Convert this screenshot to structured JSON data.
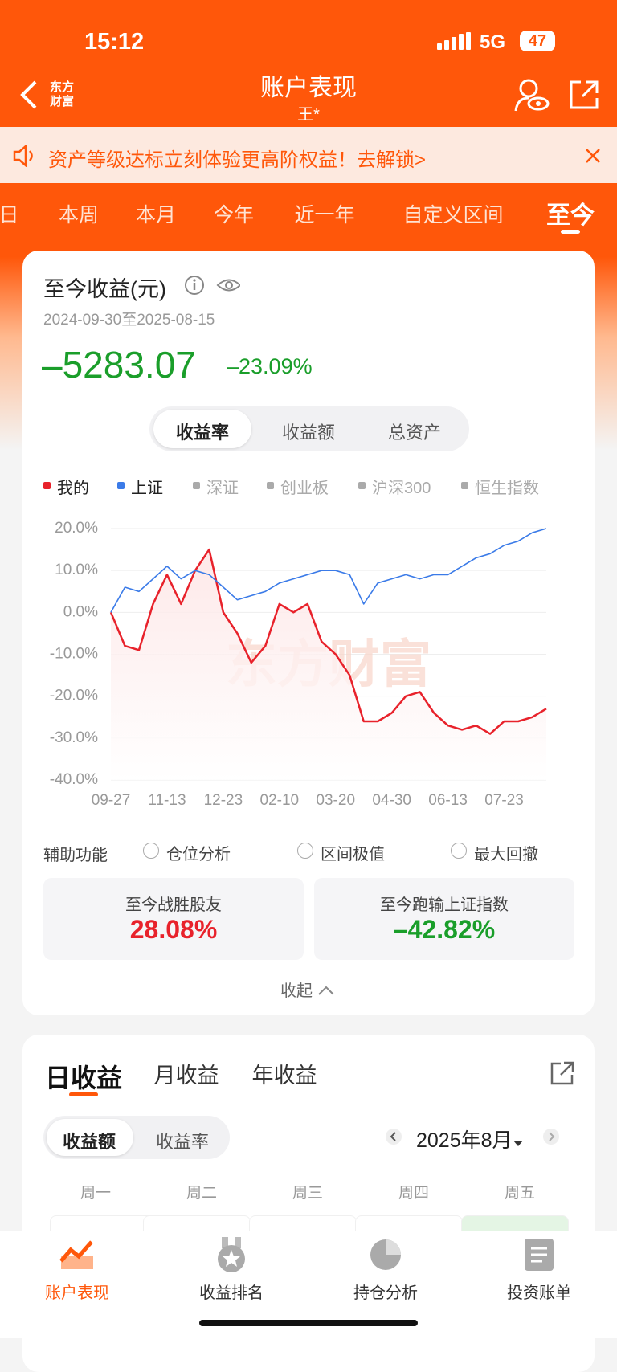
{
  "status_bar": {
    "time": "15:12",
    "network": "5G",
    "battery": "47"
  },
  "header": {
    "brand": [
      "东方",
      "财富"
    ],
    "title": "账户表现",
    "subtitle": "王*"
  },
  "banner": {
    "text": "资产等级达标立刻体验更高阶权益！去解锁>"
  },
  "period_tabs": {
    "items": [
      "日",
      "本周",
      "本月",
      "今年",
      "近一年",
      "自定义区间",
      "至今"
    ],
    "active": 6
  },
  "summary": {
    "title": "至今收益(元)",
    "date_range": "2024-09-30至2025-08-15",
    "amount": "–5283.07",
    "rate": "–23.09%"
  },
  "metric_tabs": {
    "items": [
      "收益率",
      "收益额",
      "总资产"
    ],
    "active": 0
  },
  "chart_data": {
    "type": "line",
    "watermark": "东方财富",
    "categories": [
      "09-27",
      null,
      null,
      null,
      "11-13",
      null,
      null,
      null,
      "12-23",
      null,
      null,
      null,
      "02-10",
      null,
      null,
      null,
      "03-20",
      null,
      null,
      null,
      "04-30",
      null,
      null,
      null,
      "06-13",
      null,
      null,
      null,
      "07-23",
      null,
      null,
      null
    ],
    "series": [
      {
        "name": "我的",
        "color": "#e8222b",
        "values": [
          0,
          -8,
          -9,
          2,
          9,
          2,
          10,
          15,
          0,
          -5,
          -12,
          -8,
          2,
          0,
          2,
          -7,
          -10,
          -15,
          -26,
          -26,
          -24,
          -20,
          -19,
          -24,
          -27,
          -28,
          -27,
          -29,
          -26,
          -26,
          -25,
          -23
        ]
      },
      {
        "name": "上证",
        "color": "#3b7be8",
        "values": [
          0,
          6,
          5,
          8,
          11,
          8,
          10,
          9,
          6,
          3,
          4,
          5,
          7,
          8,
          9,
          10,
          10,
          9,
          2,
          7,
          8,
          9,
          8,
          9,
          9,
          11,
          13,
          14,
          16,
          17,
          19,
          20
        ]
      }
    ],
    "inactive_legend": {
      "color": "#aaaaaa",
      "names": [
        "深证",
        "创业板",
        "沪深300",
        "恒生指数"
      ]
    },
    "ylim": [
      -40,
      20
    ],
    "yticks": [
      {
        "value": 20,
        "label": "20.0%"
      },
      {
        "value": 10,
        "label": "10.0%"
      },
      {
        "value": 0,
        "label": "0.0%"
      },
      {
        "value": -10,
        "label": "-10.0%"
      },
      {
        "value": -20,
        "label": "-20.0%"
      },
      {
        "value": -30,
        "label": "-30.0%"
      },
      {
        "value": -40,
        "label": "-40.0%"
      }
    ],
    "grid": true
  },
  "aux": {
    "label": "辅助功能",
    "options": [
      "仓位分析",
      "区间极值",
      "最大回撤"
    ]
  },
  "stats": [
    {
      "label": "至今战胜股友",
      "value": "28.08%",
      "color": "#e8222b"
    },
    {
      "label": "至今跑输上证指数",
      "value": "–42.82%",
      "color": "#1a9e2a"
    }
  ],
  "collapse": "收起",
  "daily": {
    "tabs": [
      "日收益",
      "月收益",
      "年收益"
    ],
    "toggle": [
      "收益额",
      "收益率"
    ],
    "month": "2025年8月",
    "weekdays": [
      "周一",
      "周二",
      "周三",
      "周四",
      "周五"
    ]
  },
  "nav": {
    "items": [
      "账户表现",
      "收益排名",
      "持仓分析",
      "投资账单"
    ],
    "active": 0
  }
}
